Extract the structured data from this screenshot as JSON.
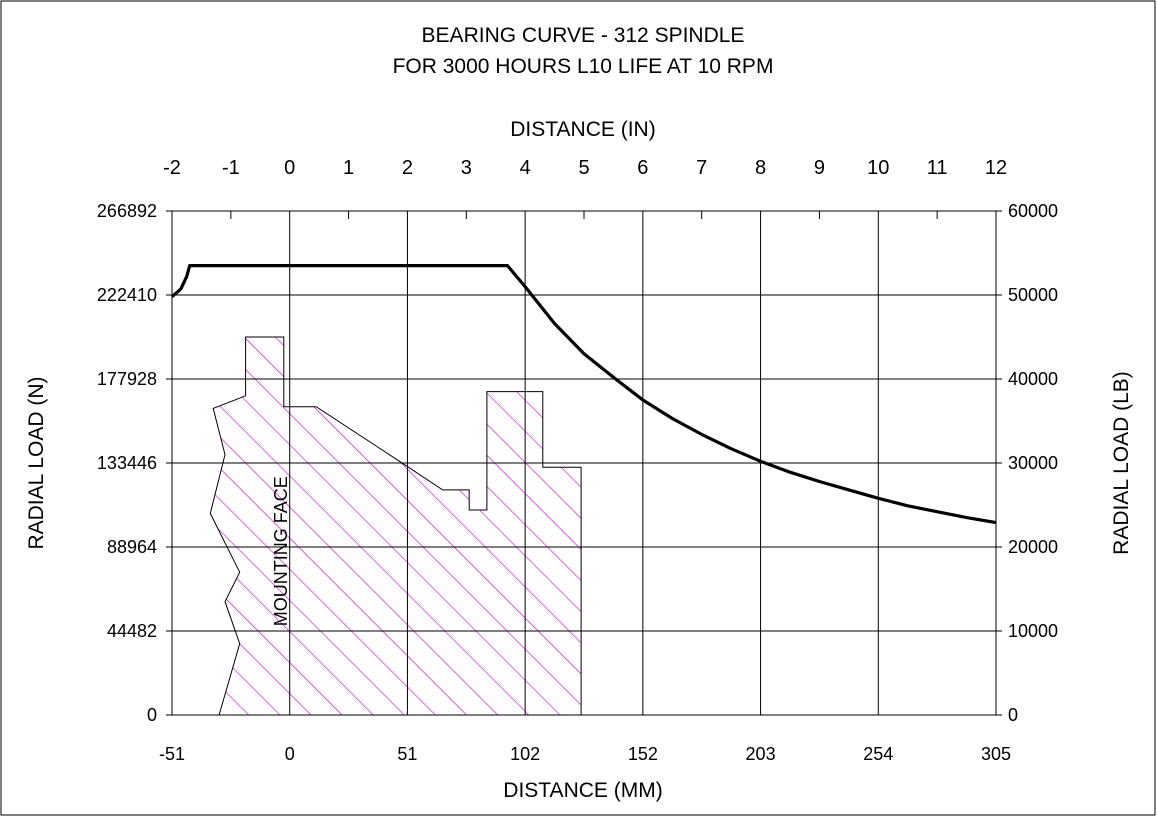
{
  "chart_data": {
    "type": "line",
    "title": "BEARING CURVE - 312 SPINDLE",
    "subtitle": "FOR 3000 HOURS L10 LIFE AT 10 RPM",
    "xlabel_top": "DISTANCE (IN)",
    "xlabel_bottom": "DISTANCE (MM)",
    "ylabel_left": "RADIAL LOAD (N)",
    "ylabel_right": "RADIAL LOAD (LB)",
    "xlim_in": [
      -2,
      12
    ],
    "ylim_lb": [
      0,
      60000
    ],
    "grid": true,
    "x_ticks_top": [
      -2,
      -1,
      0,
      1,
      2,
      3,
      4,
      5,
      6,
      7,
      8,
      9,
      10,
      11,
      12
    ],
    "x_ticks_bottom": [
      {
        "label": "-51",
        "value_in": -2
      },
      {
        "label": "0",
        "value_in": 0
      },
      {
        "label": "51",
        "value_in": 2
      },
      {
        "label": "102",
        "value_in": 4
      },
      {
        "label": "152",
        "value_in": 6
      },
      {
        "label": "203",
        "value_in": 8
      },
      {
        "label": "254",
        "value_in": 10
      },
      {
        "label": "305",
        "value_in": 12
      }
    ],
    "y_ticks_left": [
      {
        "label": "0",
        "value_lb": 0
      },
      {
        "label": "44482",
        "value_lb": 10000
      },
      {
        "label": "88964",
        "value_lb": 20000
      },
      {
        "label": "133446",
        "value_lb": 30000
      },
      {
        "label": "177928",
        "value_lb": 40000
      },
      {
        "label": "222410",
        "value_lb": 50000
      },
      {
        "label": "266892",
        "value_lb": 60000
      }
    ],
    "y_ticks_right": [
      0,
      10000,
      20000,
      30000,
      40000,
      50000,
      60000
    ],
    "series": [
      {
        "color": "#000000",
        "points_in_lb": [
          [
            -2.0,
            49800
          ],
          [
            -1.85,
            50700
          ],
          [
            -1.75,
            52200
          ],
          [
            -1.7,
            53500
          ],
          [
            3.7,
            53500
          ],
          [
            4.0,
            51000
          ],
          [
            4.5,
            46600
          ],
          [
            5.0,
            43000
          ],
          [
            5.5,
            40200
          ],
          [
            6.0,
            37500
          ],
          [
            6.5,
            35300
          ],
          [
            7.0,
            33400
          ],
          [
            7.5,
            31700
          ],
          [
            8.0,
            30200
          ],
          [
            8.5,
            28900
          ],
          [
            9.0,
            27800
          ],
          [
            9.5,
            26800
          ],
          [
            10.0,
            25800
          ],
          [
            10.5,
            24900
          ],
          [
            11.0,
            24200
          ],
          [
            11.5,
            23500
          ],
          [
            12.0,
            22900
          ]
        ]
      }
    ],
    "hatched_region": {
      "label": "MOUNTING FACE",
      "color": "#cc00cc",
      "outline_in_lb": [
        [
          -1.2,
          0
        ],
        [
          -0.85,
          8500
        ],
        [
          -1.1,
          13500
        ],
        [
          -0.85,
          17000
        ],
        [
          -1.35,
          24000
        ],
        [
          -1.1,
          31000
        ],
        [
          -1.3,
          36500
        ],
        [
          -0.75,
          38000
        ],
        [
          -0.75,
          45000
        ],
        [
          -0.1,
          45000
        ],
        [
          -0.1,
          36700
        ],
        [
          0.45,
          36700
        ],
        [
          1.8,
          30500
        ],
        [
          2.6,
          26800
        ],
        [
          3.05,
          26800
        ],
        [
          3.05,
          24400
        ],
        [
          3.35,
          24400
        ],
        [
          3.35,
          38500
        ],
        [
          4.3,
          38500
        ],
        [
          4.3,
          29500
        ],
        [
          4.95,
          29500
        ],
        [
          4.95,
          0
        ]
      ]
    }
  }
}
